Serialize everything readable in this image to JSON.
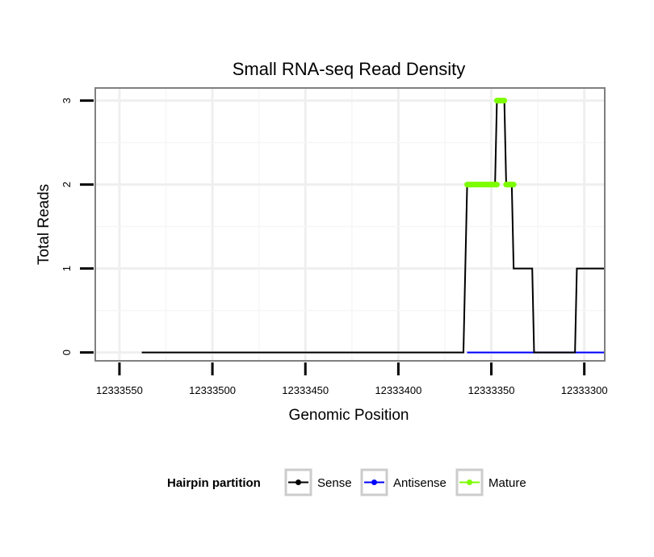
{
  "chart_data": {
    "type": "line",
    "title": "Small RNA-seq Read Density",
    "xlabel": "Genomic Position",
    "ylabel": "Total Reads",
    "x_reversed": true,
    "xlim": [
      12333563,
      12333289
    ],
    "ylim": [
      -0.1,
      3.15
    ],
    "x_ticks": [
      12333550,
      12333500,
      12333450,
      12333400,
      12333350,
      12333300
    ],
    "x_tick_labels": [
      "12333550",
      "12333500",
      "12333450",
      "12333400",
      "12333350",
      "12333300"
    ],
    "y_ticks": [
      0,
      1,
      2,
      3
    ],
    "y_tick_labels": [
      "0",
      "1",
      "2",
      "3"
    ],
    "grid": true,
    "legend": {
      "title": "Hairpin partition",
      "position": "bottom",
      "entries": [
        "Sense",
        "Antisense",
        "Mature"
      ]
    },
    "series": [
      {
        "name": "Sense",
        "color": "#000000",
        "points": [
          [
            12333538,
            0
          ],
          [
            12333365,
            0
          ],
          [
            12333363,
            2
          ],
          [
            12333348,
            2
          ],
          [
            12333347,
            3
          ],
          [
            12333343,
            3
          ],
          [
            12333342,
            2
          ],
          [
            12333339,
            2
          ],
          [
            12333338,
            1
          ],
          [
            12333328,
            1
          ],
          [
            12333327,
            0
          ],
          [
            12333305,
            0
          ],
          [
            12333304,
            1
          ],
          [
            12333289,
            1
          ]
        ]
      },
      {
        "name": "Antisense",
        "color": "#0000ff",
        "points": [
          [
            12333363,
            0
          ],
          [
            12333289,
            0
          ]
        ]
      },
      {
        "name": "Mature",
        "color": "#7cfc00",
        "segments": [
          [
            [
              12333363,
              2
            ],
            [
              12333347,
              2
            ]
          ],
          [
            [
              12333347,
              3
            ],
            [
              12333343,
              3
            ]
          ],
          [
            [
              12333342,
              2
            ],
            [
              12333338,
              2
            ]
          ]
        ]
      }
    ]
  }
}
